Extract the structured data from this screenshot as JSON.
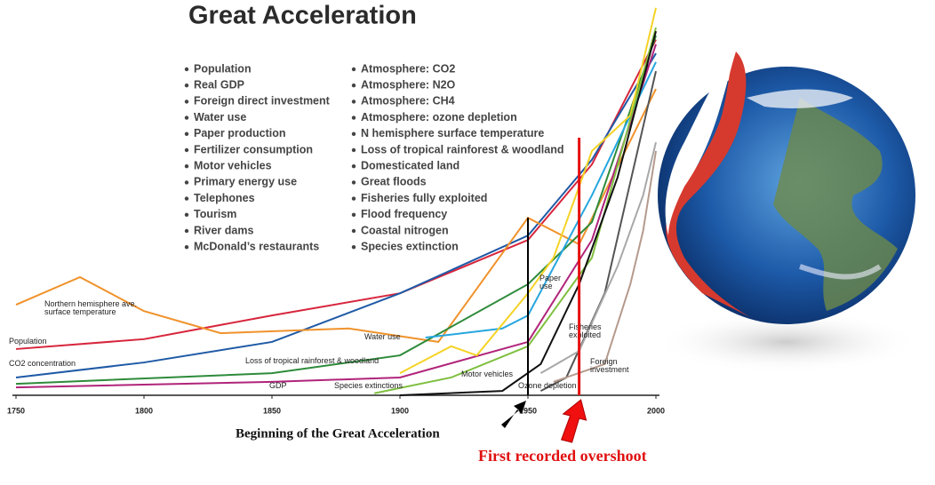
{
  "chart_data": {
    "type": "line",
    "title": "Great Acceleration",
    "xlim": [
      1750,
      2000
    ],
    "xticks": [
      1750,
      1800,
      1850,
      1900,
      1950,
      2000
    ],
    "ylim": [
      0,
      100
    ],
    "notes_left": [
      "Population",
      "Real GDP",
      "Foreign direct investment",
      "Water use",
      "Paper production",
      "Fertilizer consumption",
      "Motor vehicles",
      "Primary energy use",
      "Telephones",
      "Tourism",
      "River dams",
      "McDonald’s restaurants"
    ],
    "notes_right": [
      "Atmosphere: CO2",
      "Atmosphere: N2O",
      "Atmosphere: CH4",
      "Atmosphere: ozone depletion",
      "N hemisphere surface temperature",
      "Loss of tropical rainforest & woodland",
      "Domesticated land",
      "Great floods",
      "Fisheries fully exploited",
      "Flood frequency",
      "Coastal nitrogen",
      "Species extinction"
    ],
    "series": [
      {
        "name": "Population",
        "color": "#d7263d",
        "x": [
          1750,
          1800,
          1850,
          1900,
          1950,
          1975,
          2000
        ],
        "values": [
          11.7,
          14.2,
          20.2,
          25.8,
          39.3,
          58.4,
          90
        ]
      },
      {
        "name": "CO2 concentration",
        "color": "#1f5aa6",
        "x": [
          1750,
          1800,
          1850,
          1900,
          1950,
          1975,
          2000
        ],
        "values": [
          4.5,
          8.3,
          13.5,
          25.8,
          40.4,
          59.6,
          86.5
        ]
      },
      {
        "name": "Northern hemisphere ave. surface temperature",
        "color": "#f0922b",
        "x": [
          1750,
          1775,
          1800,
          1830,
          1880,
          1915,
          1950,
          1970,
          2000
        ],
        "values": [
          22.9,
          29.9,
          21.3,
          15.7,
          16.9,
          13.5,
          44.9,
          38.2,
          77.5
        ]
      },
      {
        "name": "Loss of tropical rainforest & woodland",
        "color": "#2e8b3a",
        "x": [
          1750,
          1850,
          1900,
          1950,
          1975,
          2000
        ],
        "values": [
          2.9,
          5.6,
          10.1,
          28.1,
          43.8,
          91
        ]
      },
      {
        "name": "GDP",
        "color": "#b0247a",
        "x": [
          1750,
          1850,
          1900,
          1950,
          1975,
          2000
        ],
        "values": [
          2,
          3.4,
          4.5,
          13.5,
          39.3,
          88.8
        ]
      },
      {
        "name": "Water use",
        "color": "#26a6df",
        "x": [
          1910,
          1940,
          1950,
          1975,
          2000
        ],
        "values": [
          14.6,
          16.9,
          20.2,
          50.6,
          84.3
        ]
      },
      {
        "name": "Paper use",
        "color": "#f5d327",
        "x": [
          1900,
          1920,
          1930,
          1950,
          1960,
          1975,
          1990,
          2000
        ],
        "values": [
          5.6,
          12.4,
          10.1,
          25.8,
          34.8,
          61.8,
          70.8,
          98
        ]
      },
      {
        "name": "Species extinctions",
        "color": "#7fbf3f",
        "x": [
          1890,
          1920,
          1950,
          1975,
          2000
        ],
        "values": [
          0.5,
          4.5,
          12.4,
          34.8,
          93
        ]
      },
      {
        "name": "Motor vehicles",
        "color": "#111111",
        "x": [
          1900,
          1940,
          1955,
          1970,
          1985,
          2000
        ],
        "values": [
          0,
          1.1,
          7.9,
          28.1,
          55.1,
          92.1
        ]
      },
      {
        "name": "Ozone depletion",
        "color": "#555555",
        "x": [
          1955,
          1965,
          1980,
          2000
        ],
        "values": [
          1.1,
          4.5,
          25.8,
          82
        ]
      },
      {
        "name": "Fisheries exploited",
        "color": "#a8a8a8",
        "x": [
          1955,
          1970,
          1985,
          1995,
          2000
        ],
        "values": [
          5.6,
          11.2,
          32.6,
          50.6,
          64
        ]
      },
      {
        "name": "Foreign investment",
        "color": "#b59a8c",
        "x": [
          1960,
          1980,
          1990,
          1995,
          2000
        ],
        "values": [
          3.4,
          7.9,
          28.1,
          41.6,
          61.8
        ]
      }
    ],
    "markers": [
      {
        "x": 1950,
        "color": "#000000"
      },
      {
        "x": 1970,
        "color": "#e61010"
      }
    ],
    "annotations": [
      "Beginning of the Great Acceleration",
      "First recorded overshoot"
    ]
  }
}
